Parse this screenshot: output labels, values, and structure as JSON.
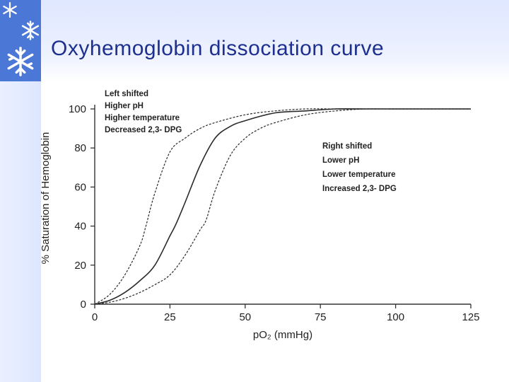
{
  "slide": {
    "title": "Oxyhemoglobin dissociation curve"
  },
  "decor": {
    "icon": "snowflake-icon",
    "band_color": "#4b77d6",
    "title_color": "#1d2f8f"
  },
  "chart_data": {
    "type": "line",
    "xlabel": "pO₂ (mmHg)",
    "ylabel": "% Saturation of Hemoglobin",
    "xlim": [
      0,
      125
    ],
    "ylim": [
      0,
      100
    ],
    "x_ticks": [
      "0",
      "25",
      "50",
      "75",
      "100",
      "125"
    ],
    "y_ticks": [
      "0",
      "20",
      "40",
      "60",
      "80",
      "100"
    ],
    "grid": false,
    "annotations": {
      "left": [
        "Left shifted",
        "Higher pH",
        "Higher temperature",
        "Decreased 2,3- DPG"
      ],
      "right": [
        "Right shifted",
        "Lower pH",
        "Lower temperature",
        "Increased 2,3- DPG"
      ]
    },
    "series": [
      {
        "style": "dashed",
        "x": [
          0,
          5,
          10,
          15,
          17,
          20,
          25,
          30,
          35,
          40,
          50,
          60,
          70,
          80,
          90,
          100,
          125
        ],
        "y": [
          0,
          5,
          15,
          30,
          40,
          57,
          78,
          85,
          90,
          93,
          97,
          99,
          100,
          100,
          100,
          100,
          100
        ]
      },
      {
        "style": "solid",
        "x": [
          0,
          5,
          10,
          15,
          20,
          25,
          27,
          30,
          35,
          40,
          45,
          50,
          60,
          70,
          80,
          90,
          100,
          125
        ],
        "y": [
          0,
          2,
          6,
          12,
          20,
          35,
          41,
          52,
          71,
          85,
          91,
          94,
          98,
          99,
          100,
          100,
          100,
          100
        ]
      },
      {
        "style": "dashed",
        "x": [
          0,
          5,
          10,
          15,
          20,
          25,
          30,
          35,
          37,
          40,
          45,
          50,
          55,
          60,
          70,
          80,
          90,
          100,
          125
        ],
        "y": [
          0,
          1,
          3,
          6,
          10,
          15,
          25,
          38,
          43,
          58,
          76,
          85,
          90,
          93,
          97,
          99,
          100,
          100,
          100
        ]
      }
    ]
  }
}
